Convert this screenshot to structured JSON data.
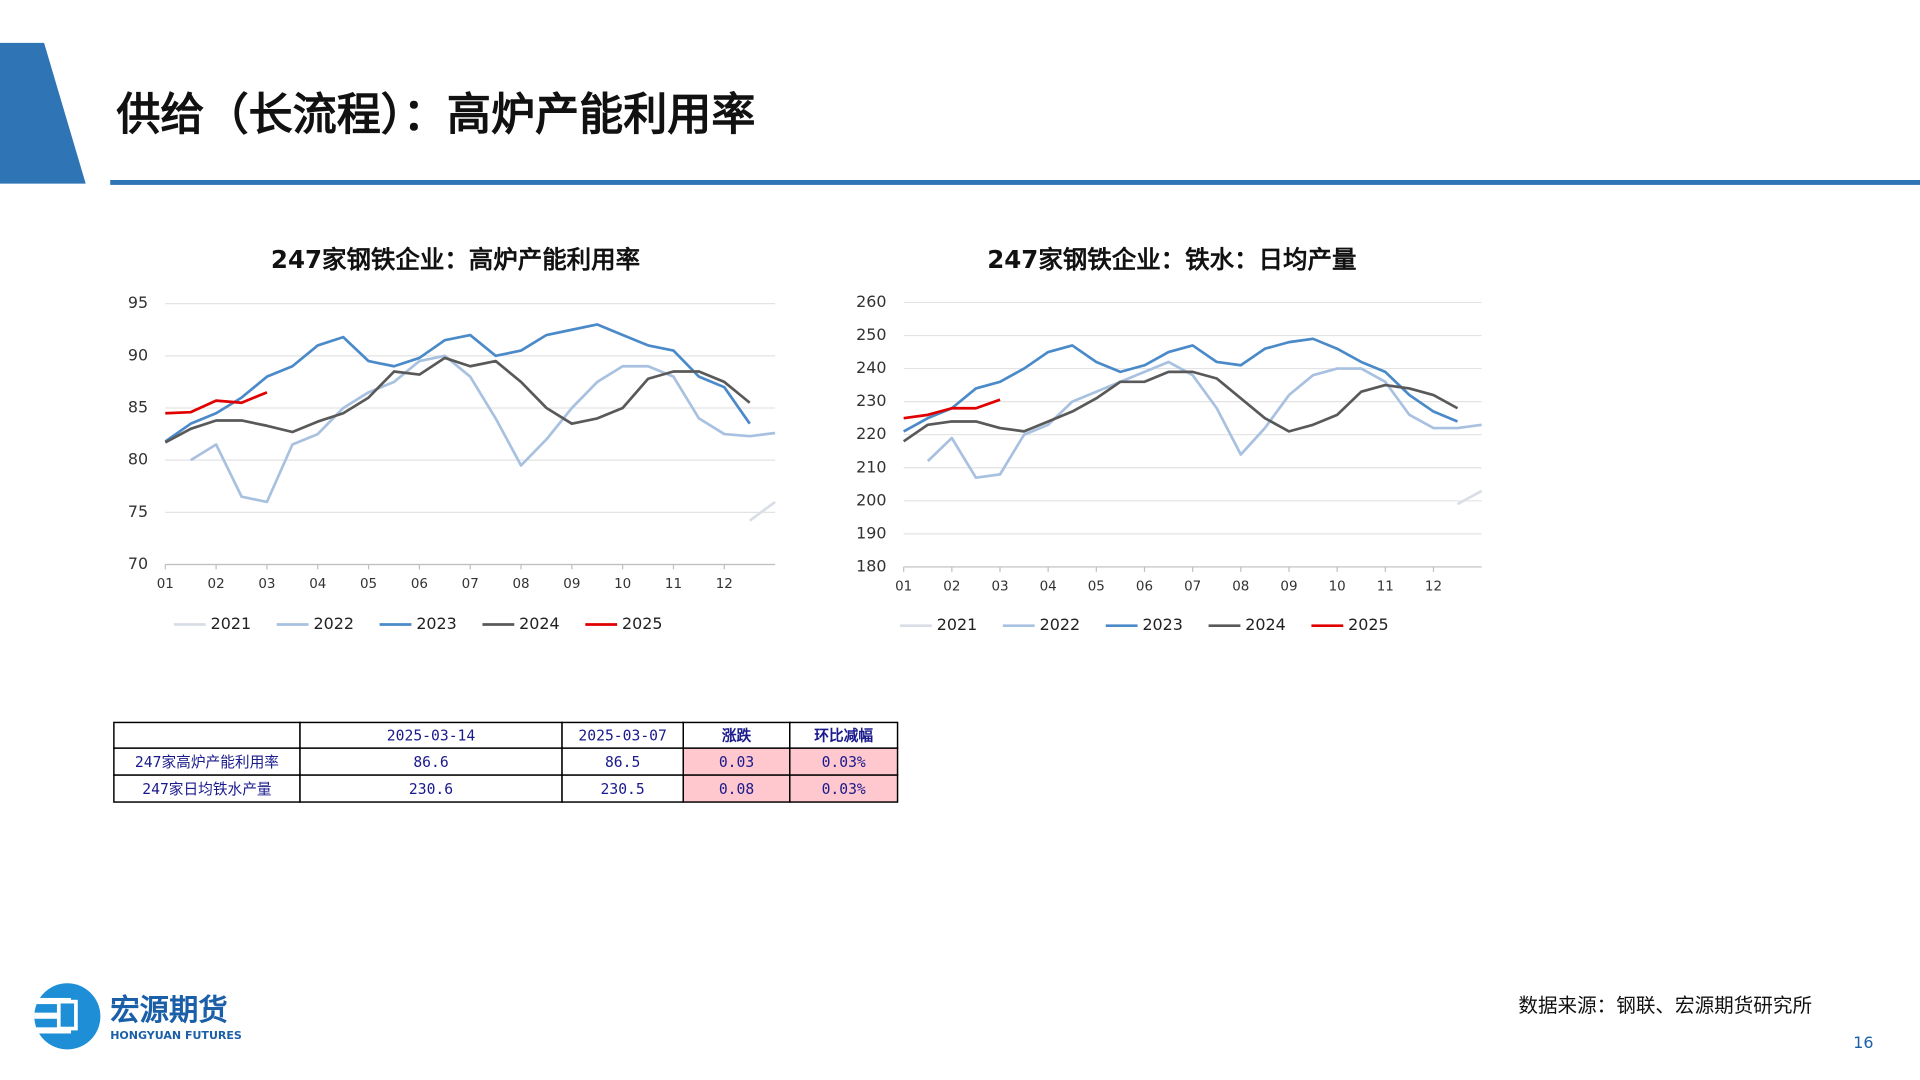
{
  "header": {
    "title": "供给（长流程）：高炉产能利用率"
  },
  "chart_data": [
    {
      "type": "line",
      "title": "247家钢铁企业：高炉产能利用率",
      "x": [
        1,
        1.5,
        2,
        2.5,
        3,
        3.5,
        4,
        4.5,
        5,
        5.5,
        6,
        6.5,
        7,
        7.5,
        8,
        8.5,
        9,
        9.5,
        10,
        10.5,
        11,
        11.5,
        12,
        12.5,
        13
      ],
      "xlim": [
        1,
        13
      ],
      "xticks": [
        {
          "value": 1,
          "label": "01"
        },
        {
          "value": 2,
          "label": "02"
        },
        {
          "value": 3,
          "label": "03"
        },
        {
          "value": 4,
          "label": "04"
        },
        {
          "value": 5,
          "label": "05"
        },
        {
          "value": 6,
          "label": "06"
        },
        {
          "value": 7,
          "label": "07"
        },
        {
          "value": 8,
          "label": "08"
        },
        {
          "value": 9,
          "label": "09"
        },
        {
          "value": 10,
          "label": "10"
        },
        {
          "value": 11,
          "label": "11"
        },
        {
          "value": 12,
          "label": "12"
        }
      ],
      "ylim": [
        70,
        95
      ],
      "yticks": [
        70,
        75,
        80,
        85,
        90,
        95
      ],
      "grid": true,
      "series": [
        {
          "name": "2021",
          "color": "#d9dde5",
          "values": [
            null,
            null,
            null,
            null,
            null,
            null,
            null,
            null,
            null,
            null,
            null,
            null,
            null,
            null,
            null,
            null,
            null,
            null,
            null,
            null,
            null,
            null,
            null,
            74.2,
            76
          ]
        },
        {
          "name": "2022",
          "color": "#a9c1e0",
          "values": [
            null,
            80,
            81.5,
            76.5,
            76,
            81.5,
            82.5,
            85,
            86.5,
            87.5,
            89.5,
            90,
            88,
            84,
            79.5,
            82,
            85,
            87.5,
            89,
            89,
            88,
            84,
            82.5,
            82.3,
            82.6
          ]
        },
        {
          "name": "2023",
          "color": "#4a8ac9",
          "values": [
            81.8,
            83.5,
            84.5,
            86,
            88,
            89,
            91,
            91.8,
            89.5,
            89,
            89.8,
            91.5,
            92,
            90,
            90.5,
            92,
            92.5,
            93,
            92,
            91,
            90.5,
            88,
            87,
            83.5,
            null
          ]
        },
        {
          "name": "2024",
          "color": "#595959",
          "values": [
            81.7,
            83,
            83.8,
            83.8,
            83.3,
            82.7,
            83.7,
            84.5,
            86,
            88.5,
            88.2,
            89.8,
            89,
            89.5,
            87.5,
            85,
            83.5,
            84,
            85,
            87.8,
            88.5,
            88.5,
            87.5,
            85.5,
            null
          ]
        },
        {
          "name": "2025",
          "color": "#e00000",
          "values": [
            84.5,
            84.6,
            85.7,
            85.5,
            86.5,
            null,
            null,
            null,
            null,
            null,
            null,
            null,
            null,
            null,
            null,
            null,
            null,
            null,
            null,
            null,
            null,
            null,
            null,
            null,
            null
          ]
        }
      ]
    },
    {
      "type": "line",
      "title": "247家钢铁企业：铁水：日均产量",
      "x": [
        1,
        1.5,
        2,
        2.5,
        3,
        3.5,
        4,
        4.5,
        5,
        5.5,
        6,
        6.5,
        7,
        7.5,
        8,
        8.5,
        9,
        9.5,
        10,
        10.5,
        11,
        11.5,
        12,
        12.5,
        13
      ],
      "xlim": [
        1,
        13
      ],
      "xticks": [
        {
          "value": 1,
          "label": "01"
        },
        {
          "value": 2,
          "label": "02"
        },
        {
          "value": 3,
          "label": "03"
        },
        {
          "value": 4,
          "label": "04"
        },
        {
          "value": 5,
          "label": "05"
        },
        {
          "value": 6,
          "label": "06"
        },
        {
          "value": 7,
          "label": "07"
        },
        {
          "value": 8,
          "label": "08"
        },
        {
          "value": 9,
          "label": "09"
        },
        {
          "value": 10,
          "label": "10"
        },
        {
          "value": 11,
          "label": "11"
        },
        {
          "value": 12,
          "label": "12"
        }
      ],
      "ylim": [
        180,
        260
      ],
      "yticks": [
        180,
        190,
        200,
        210,
        220,
        230,
        240,
        250,
        260
      ],
      "grid": true,
      "series": [
        {
          "name": "2021",
          "color": "#d9dde5",
          "values": [
            null,
            null,
            null,
            null,
            null,
            null,
            null,
            null,
            null,
            null,
            null,
            null,
            null,
            null,
            null,
            null,
            null,
            null,
            null,
            null,
            null,
            null,
            null,
            199,
            203
          ]
        },
        {
          "name": "2022",
          "color": "#a9c1e0",
          "values": [
            null,
            212,
            219,
            207,
            208,
            220,
            223,
            230,
            233,
            236,
            239,
            242,
            238,
            228,
            214,
            222,
            232,
            238,
            240,
            240,
            236,
            226,
            222,
            222,
            223
          ]
        },
        {
          "name": "2023",
          "color": "#4a8ac9",
          "values": [
            221,
            225,
            228,
            234,
            236,
            240,
            245,
            247,
            242,
            239,
            241,
            245,
            247,
            242,
            241,
            246,
            248,
            249,
            246,
            242,
            239,
            232,
            227,
            224,
            null
          ]
        },
        {
          "name": "2024",
          "color": "#595959",
          "values": [
            218,
            223,
            224,
            224,
            222,
            221,
            224,
            227,
            231,
            236,
            236,
            239,
            239,
            237,
            231,
            225,
            221,
            223,
            226,
            233,
            235,
            234,
            232,
            228,
            null
          ]
        },
        {
          "name": "2025",
          "color": "#e00000",
          "values": [
            225,
            226,
            228,
            228,
            230.6,
            null,
            null,
            null,
            null,
            null,
            null,
            null,
            null,
            null,
            null,
            null,
            null,
            null,
            null,
            null,
            null,
            null,
            null,
            null,
            null
          ]
        }
      ]
    }
  ],
  "table": {
    "header": [
      "2025-03-14",
      "2025-03-07",
      "涨跌",
      "环比减幅"
    ],
    "rows": [
      [
        "247家高炉产能利用率",
        86.6,
        86.5,
        0.03,
        "0.03%"
      ],
      [
        "247家日均铁水产量",
        230.6,
        230.5,
        0.08,
        "0.03%"
      ]
    ]
  },
  "logo": {
    "name": "宏源期货",
    "subtitle": "HONGYUAN FUTURES"
  },
  "source": "数据来源：钢联、宏源期货研究所",
  "page_number": 16
}
